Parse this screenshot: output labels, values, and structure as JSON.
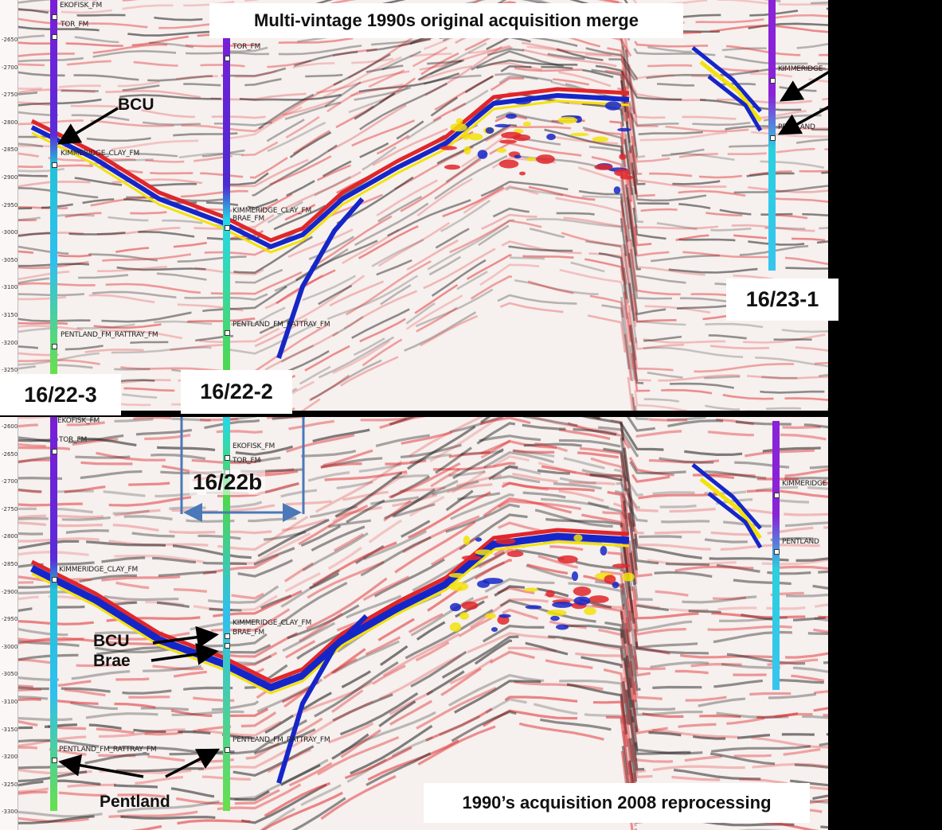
{
  "top_panel": {
    "title": "Multi-vintage 1990s original acquisition merge",
    "depth_ticks": [
      "-2650",
      "-2700",
      "-2750",
      "-2800",
      "-2850",
      "-2900",
      "-2950",
      "-3000",
      "-3050",
      "-3100",
      "-3150",
      "-3200",
      "-3250"
    ],
    "well_a": {
      "name": "16/22-3",
      "formations": [
        "EKOFISK_FM",
        "TOR_FM",
        "KIMMERIDGE_CLAY_FM",
        "PENTLAND_FM_RATTRAY_FM"
      ]
    },
    "well_b": {
      "name": "16/22-2",
      "formations": [
        "TOR_FM",
        "KIMMERIDGE_CLAY_FM",
        "BRAE_FM",
        "PENTLAND_FM_RATTRAY_FM"
      ]
    },
    "well_c": {
      "name": "16/23-1",
      "formations": [
        "KIMMERIDGE",
        "PENTLAND"
      ]
    },
    "annotation_bcu": "BCU"
  },
  "bottom_panel": {
    "title": "1990’s acquisition 2008 reprocessing",
    "depth_ticks": [
      "-2600",
      "-2650",
      "-2700",
      "-2750",
      "-2800",
      "-2850",
      "-2900",
      "-2950",
      "-3000",
      "-3050",
      "-3100",
      "-3150",
      "-3200",
      "-3250",
      "-3300"
    ],
    "well_a": {
      "formations": [
        "EKOFISK_FM",
        "TOR_FM",
        "KIMMERIDGE_CLAY_FM",
        "PENTLAND_FM_RATTRAY_FM"
      ]
    },
    "well_b": {
      "formations": [
        "EKOFISK_FM",
        "TOR_FM",
        "KIMMERIDGE_CLAY_FM",
        "BRAE_FM",
        "PENTLAND_FM_RATTRAY_FM"
      ]
    },
    "well_c": {
      "formations": [
        "KIMMERIDGE",
        "PENTLAND"
      ]
    },
    "block_label": "16/22b",
    "annotation_bcu": "BCU",
    "annotation_brae": "Brae",
    "annotation_pentland": "Pentland"
  },
  "colors": {
    "positive": "#e0262a",
    "negative": "#111111",
    "strong_negative": "#1526c8",
    "strong_positive": "#f2e20a",
    "bracket": "#4a78b8"
  }
}
